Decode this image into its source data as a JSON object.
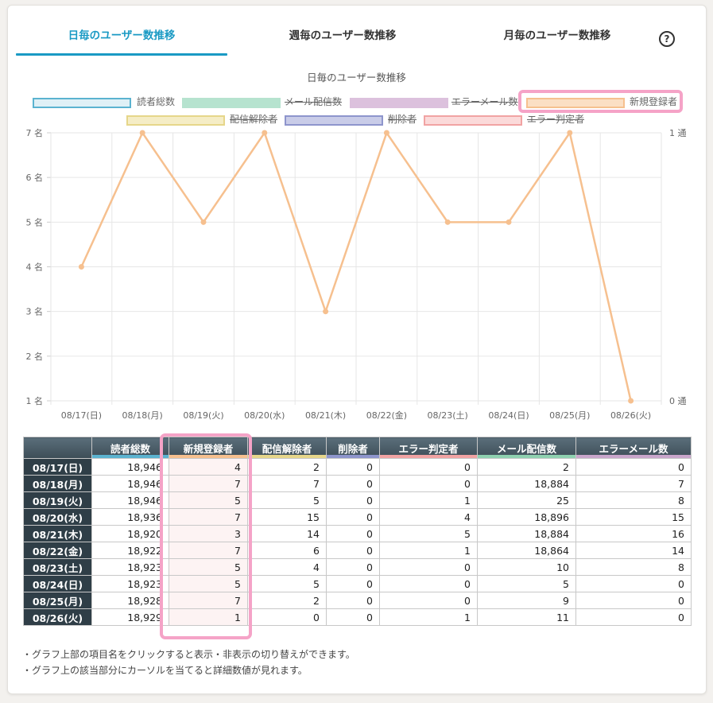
{
  "tabs": [
    {
      "label": "日毎のユーザー数推移",
      "active": true
    },
    {
      "label": "週毎のユーザー数推移",
      "active": false
    },
    {
      "label": "月毎のユーザー数推移",
      "active": false
    }
  ],
  "help_icon": "?",
  "chart_data": {
    "type": "line",
    "title": "日毎のユーザー数推移",
    "categories": [
      "08/17(日)",
      "08/18(月)",
      "08/19(火)",
      "08/20(水)",
      "08/21(木)",
      "08/22(金)",
      "08/23(土)",
      "08/24(日)",
      "08/25(月)",
      "08/26(火)"
    ],
    "legend": [
      {
        "name": "読者総数",
        "color": "#5bb3d0",
        "fill": "#dff0f6",
        "hidden": false
      },
      {
        "name": "メール配信数",
        "color": "#b6e3cf",
        "fill": "#b6e3cf",
        "hidden": true
      },
      {
        "name": "エラーメール数",
        "color": "#dcc1dd",
        "fill": "#dcc1dd",
        "hidden": true
      },
      {
        "name": "新規登録者",
        "color": "#f6c08f",
        "fill": "#fbdfc4",
        "hidden": false
      },
      {
        "name": "配信解除者",
        "color": "#e6d68a",
        "fill": "#f5edc6",
        "hidden": true
      },
      {
        "name": "削除者",
        "color": "#8e95cc",
        "fill": "#c9cce8",
        "hidden": true
      },
      {
        "name": "エラー判定者",
        "color": "#f1a3a3",
        "fill": "#fbdada",
        "hidden": true
      }
    ],
    "series": [
      {
        "name": "新規登録者",
        "color": "#f6c08f",
        "values": [
          4,
          7,
          5,
          7,
          3,
          7,
          5,
          5,
          7,
          1
        ]
      }
    ],
    "y_left": {
      "min": 1,
      "max": 7,
      "ticks": [
        "1 名",
        "2 名",
        "3 名",
        "4 名",
        "5 名",
        "6 名",
        "7 名"
      ]
    },
    "y_right": {
      "min": 0,
      "max": 1,
      "ticks": [
        "0 通",
        "1 通"
      ]
    },
    "grid": true
  },
  "table": {
    "headers": [
      {
        "label": "読者総数",
        "color": "#5bb3d0"
      },
      {
        "label": "新規登録者",
        "color": "#f6c08f"
      },
      {
        "label": "配信解除者",
        "color": "#e6d68a"
      },
      {
        "label": "削除者",
        "color": "#8e95cc"
      },
      {
        "label": "エラー判定者",
        "color": "#f1a3a3"
      },
      {
        "label": "メール配信数",
        "color": "#8fd1b0"
      },
      {
        "label": "エラーメール数",
        "color": "#c9a6cb"
      }
    ],
    "rows": [
      {
        "date": "08/17(日)",
        "values": [
          "18,946",
          "4",
          "2",
          "0",
          "0",
          "2",
          "0"
        ]
      },
      {
        "date": "08/18(月)",
        "values": [
          "18,946",
          "7",
          "7",
          "0",
          "0",
          "18,884",
          "7"
        ]
      },
      {
        "date": "08/19(火)",
        "values": [
          "18,946",
          "5",
          "5",
          "0",
          "1",
          "25",
          "8"
        ]
      },
      {
        "date": "08/20(水)",
        "values": [
          "18,936",
          "7",
          "15",
          "0",
          "4",
          "18,896",
          "15"
        ]
      },
      {
        "date": "08/21(木)",
        "values": [
          "18,920",
          "3",
          "14",
          "0",
          "5",
          "18,884",
          "16"
        ]
      },
      {
        "date": "08/22(金)",
        "values": [
          "18,922",
          "7",
          "6",
          "0",
          "1",
          "18,864",
          "14"
        ]
      },
      {
        "date": "08/23(土)",
        "values": [
          "18,923",
          "5",
          "4",
          "0",
          "0",
          "10",
          "8"
        ]
      },
      {
        "date": "08/24(日)",
        "values": [
          "18,923",
          "5",
          "5",
          "0",
          "0",
          "5",
          "0"
        ]
      },
      {
        "date": "08/25(月)",
        "values": [
          "18,928",
          "7",
          "2",
          "0",
          "0",
          "9",
          "0"
        ]
      },
      {
        "date": "08/26(火)",
        "values": [
          "18,929",
          "1",
          "0",
          "0",
          "1",
          "11",
          "0"
        ]
      }
    ]
  },
  "notes": [
    "・グラフ上部の項目名をクリックすると表示・非表示の切り替えができます。",
    "・グラフ上の該当部分にカーソルを当てると詳細数値が見れます。"
  ]
}
